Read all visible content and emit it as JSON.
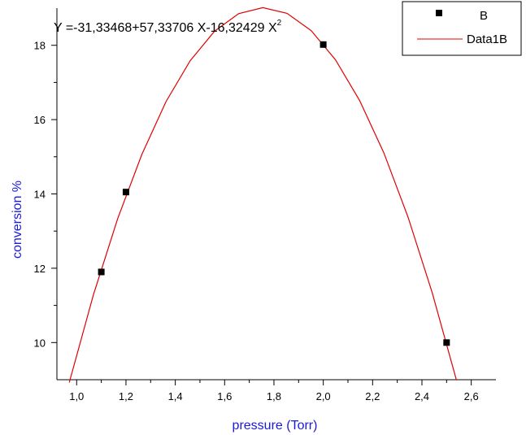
{
  "chart_data": {
    "type": "scatter",
    "equation": {
      "main": "Y =-31,33468+57,33706 X-16,32429 X",
      "superscript": "2"
    },
    "xlabel": "pressure (Torr)",
    "ylabel": "conversion %",
    "xlim": [
      0.92,
      2.7
    ],
    "ylim": [
      9.0,
      19.0
    ],
    "x_ticks": [
      1.0,
      1.2,
      1.4,
      1.6,
      1.8,
      2.0,
      2.2,
      2.4,
      2.6
    ],
    "x_tick_labels": [
      "1,0",
      "1,2",
      "1,4",
      "1,6",
      "1,8",
      "2,0",
      "2,2",
      "2,4",
      "2,6"
    ],
    "y_ticks": [
      10,
      12,
      14,
      16,
      18
    ],
    "y_tick_labels": [
      "10",
      "12",
      "14",
      "16",
      "18"
    ],
    "series": [
      {
        "name": "B",
        "kind": "scatter",
        "marker": "square",
        "color": "#000000",
        "x": [
          1.1,
          1.2,
          2.0,
          2.5
        ],
        "y": [
          11.9,
          14.05,
          18.02,
          10.0
        ]
      },
      {
        "name": "Data1B",
        "kind": "line",
        "color": "#e00000",
        "coefficients": [
          -31.33468,
          57.33706,
          -16.32429
        ],
        "x_range": [
          0.97,
          2.54
        ]
      }
    ],
    "legend_position": "top-right",
    "axis_label_color": "#1a1adb",
    "grid": false
  }
}
